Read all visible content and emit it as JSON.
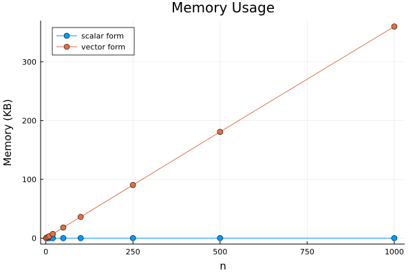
{
  "chart_data": {
    "type": "line",
    "title": "Memory Usage",
    "xlabel": "n",
    "ylabel": "Memory (KB)",
    "xlim": [
      -15,
      1030
    ],
    "ylim": [
      -10,
      370
    ],
    "x_ticks": [
      0,
      250,
      500,
      750,
      1000
    ],
    "x_tick_labels": [
      "0",
      "250",
      "500",
      "750",
      "1000"
    ],
    "y_ticks": [
      0,
      100,
      200,
      300
    ],
    "y_tick_labels": [
      "0",
      "100",
      "200",
      "300"
    ],
    "grid": true,
    "legend_position": "top-left",
    "series": [
      {
        "name": "scalar form",
        "color": "#009AFA",
        "x": [
          1,
          5,
          10,
          20,
          50,
          100,
          250,
          500,
          1000
        ],
        "y": [
          0.1,
          0.1,
          0.1,
          0.1,
          0.1,
          0.1,
          0.1,
          0.1,
          0.1
        ]
      },
      {
        "name": "vector form",
        "color": "#E26F46",
        "x": [
          1,
          5,
          10,
          20,
          50,
          100,
          250,
          500,
          1000
        ],
        "y": [
          0.4,
          1.8,
          3.6,
          7.2,
          18.1,
          36.2,
          90.5,
          180.8,
          360.0
        ]
      }
    ]
  }
}
